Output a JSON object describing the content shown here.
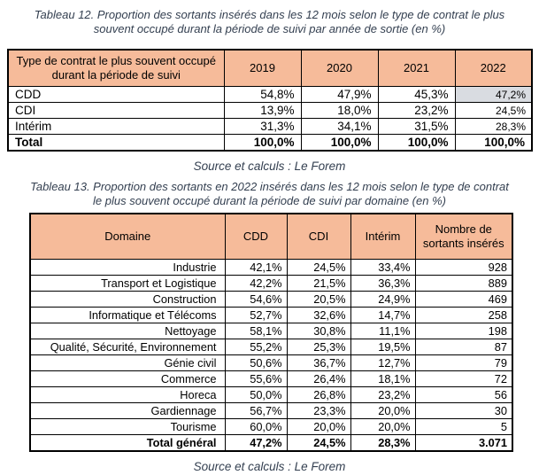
{
  "captions": {
    "table12": "Tableau 12. Proportion des sortants insérés dans les 12 mois selon le type de contrat le plus souvent occupé durant la période de suivi par année de sortie (en %)",
    "table13": "Tableau 13. Proportion des sortants en 2022 insérés dans les 12 mois selon le type de contrat le plus souvent occupé durant la période de suivi par domaine (en %)"
  },
  "source_note": "Source et calculs : Le Forem",
  "colors": {
    "header_fill": "#F6BB9A",
    "highlight_fill": "#D9DCE1",
    "caption_text": "#333F50",
    "border": "#000000"
  },
  "table1": {
    "col_header": "Type de contrat le plus souvent occupé durant la période de suivi",
    "year_headers": [
      "2019",
      "2020",
      "2021",
      "2022"
    ],
    "rows": [
      {
        "label": "CDD",
        "values": [
          "54,8%",
          "47,9%",
          "45,3%",
          "47,2%"
        ],
        "bold": false
      },
      {
        "label": "CDI",
        "values": [
          "13,9%",
          "18,0%",
          "23,2%",
          "24,5%"
        ],
        "bold": false
      },
      {
        "label": "Intérim",
        "values": [
          "31,3%",
          "34,1%",
          "31,5%",
          "28,3%"
        ],
        "bold": false
      },
      {
        "label": "Total",
        "values": [
          "100,0%",
          "100,0%",
          "100,0%",
          "100,0%"
        ],
        "bold": true
      }
    ],
    "highlight_cell": {
      "row_index": 0,
      "value_index": 3
    }
  },
  "table2": {
    "headers": [
      "Domaine",
      "CDD",
      "CDI",
      "Intérim",
      "Nombre de sortants insérés"
    ],
    "rows": [
      {
        "label": "Industrie",
        "values": [
          "42,1%",
          "24,5%",
          "33,4%",
          "928"
        ],
        "bold": false
      },
      {
        "label": "Transport et Logistique",
        "values": [
          "42,2%",
          "21,5%",
          "36,3%",
          "889"
        ],
        "bold": false
      },
      {
        "label": "Construction",
        "values": [
          "54,6%",
          "20,5%",
          "24,9%",
          "469"
        ],
        "bold": false
      },
      {
        "label": "Informatique et Télécoms",
        "values": [
          "52,7%",
          "32,6%",
          "14,7%",
          "258"
        ],
        "bold": false
      },
      {
        "label": "Nettoyage",
        "values": [
          "58,1%",
          "30,8%",
          "11,1%",
          "198"
        ],
        "bold": false
      },
      {
        "label": "Qualité, Sécurité, Environnement",
        "values": [
          "55,2%",
          "25,3%",
          "19,5%",
          "87"
        ],
        "bold": false
      },
      {
        "label": "Génie civil",
        "values": [
          "50,6%",
          "36,7%",
          "12,7%",
          "79"
        ],
        "bold": false
      },
      {
        "label": "Commerce",
        "values": [
          "55,6%",
          "26,4%",
          "18,1%",
          "72"
        ],
        "bold": false
      },
      {
        "label": "Horeca",
        "values": [
          "50,0%",
          "26,8%",
          "23,2%",
          "56"
        ],
        "bold": false
      },
      {
        "label": "Gardiennage",
        "values": [
          "56,7%",
          "23,3%",
          "20,0%",
          "30"
        ],
        "bold": false
      },
      {
        "label": "Tourisme",
        "values": [
          "60,0%",
          "20,0%",
          "20,0%",
          "5"
        ],
        "bold": false
      },
      {
        "label": "Total général",
        "values": [
          "47,2%",
          "24,5%",
          "28,3%",
          "3.071"
        ],
        "bold": true
      }
    ]
  }
}
